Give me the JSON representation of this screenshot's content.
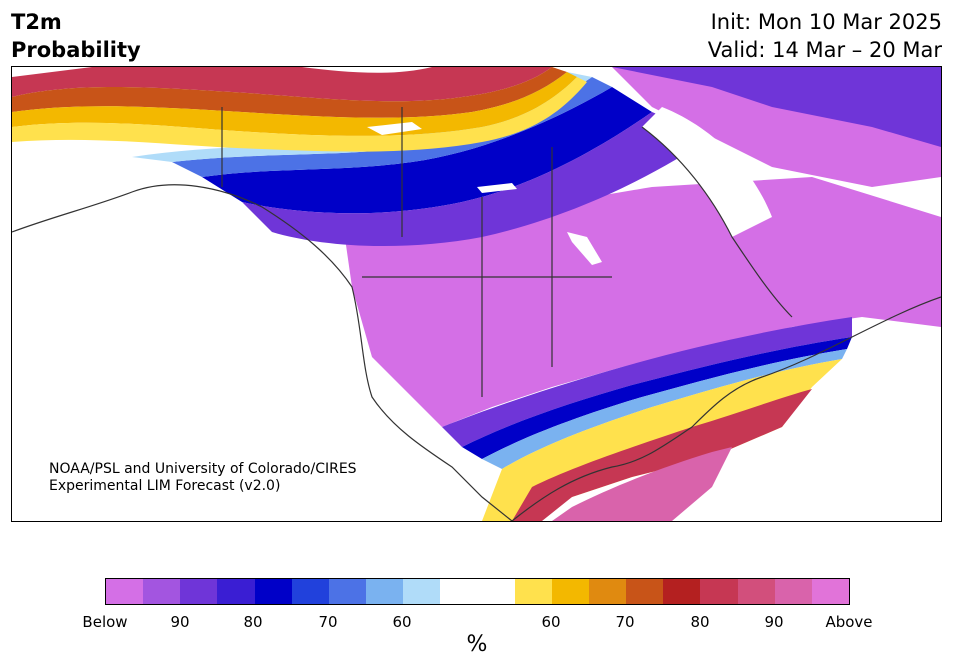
{
  "title": {
    "line1": "T2m",
    "line2": "Probability"
  },
  "info": {
    "init": "Init: Mon 10 Mar 2025",
    "valid": "Valid: 14 Mar – 20 Mar"
  },
  "credit": {
    "line1": "NOAA/PSL and University of Colorado/CIRES",
    "line2": "Experimental LIM Forecast (v2.0)"
  },
  "legend": {
    "unit": "%",
    "colors_below": [
      "#d46fe6",
      "#a355e0",
      "#6f35d8",
      "#3a1ed3",
      "#0000c8",
      "#2141dc",
      "#4c72e6",
      "#7ab2f0",
      "#b0dcf9"
    ],
    "color_neutral": "#ffffff",
    "colors_above": [
      "#ffe14d",
      "#f3b800",
      "#e08a10",
      "#c85418",
      "#b42020",
      "#c63753",
      "#d24f7c",
      "#d963ab",
      "#e173d9"
    ],
    "ticks": [
      "Below",
      "90",
      "80",
      "70",
      "60",
      "60",
      "70",
      "80",
      "90",
      "Above"
    ]
  }
}
